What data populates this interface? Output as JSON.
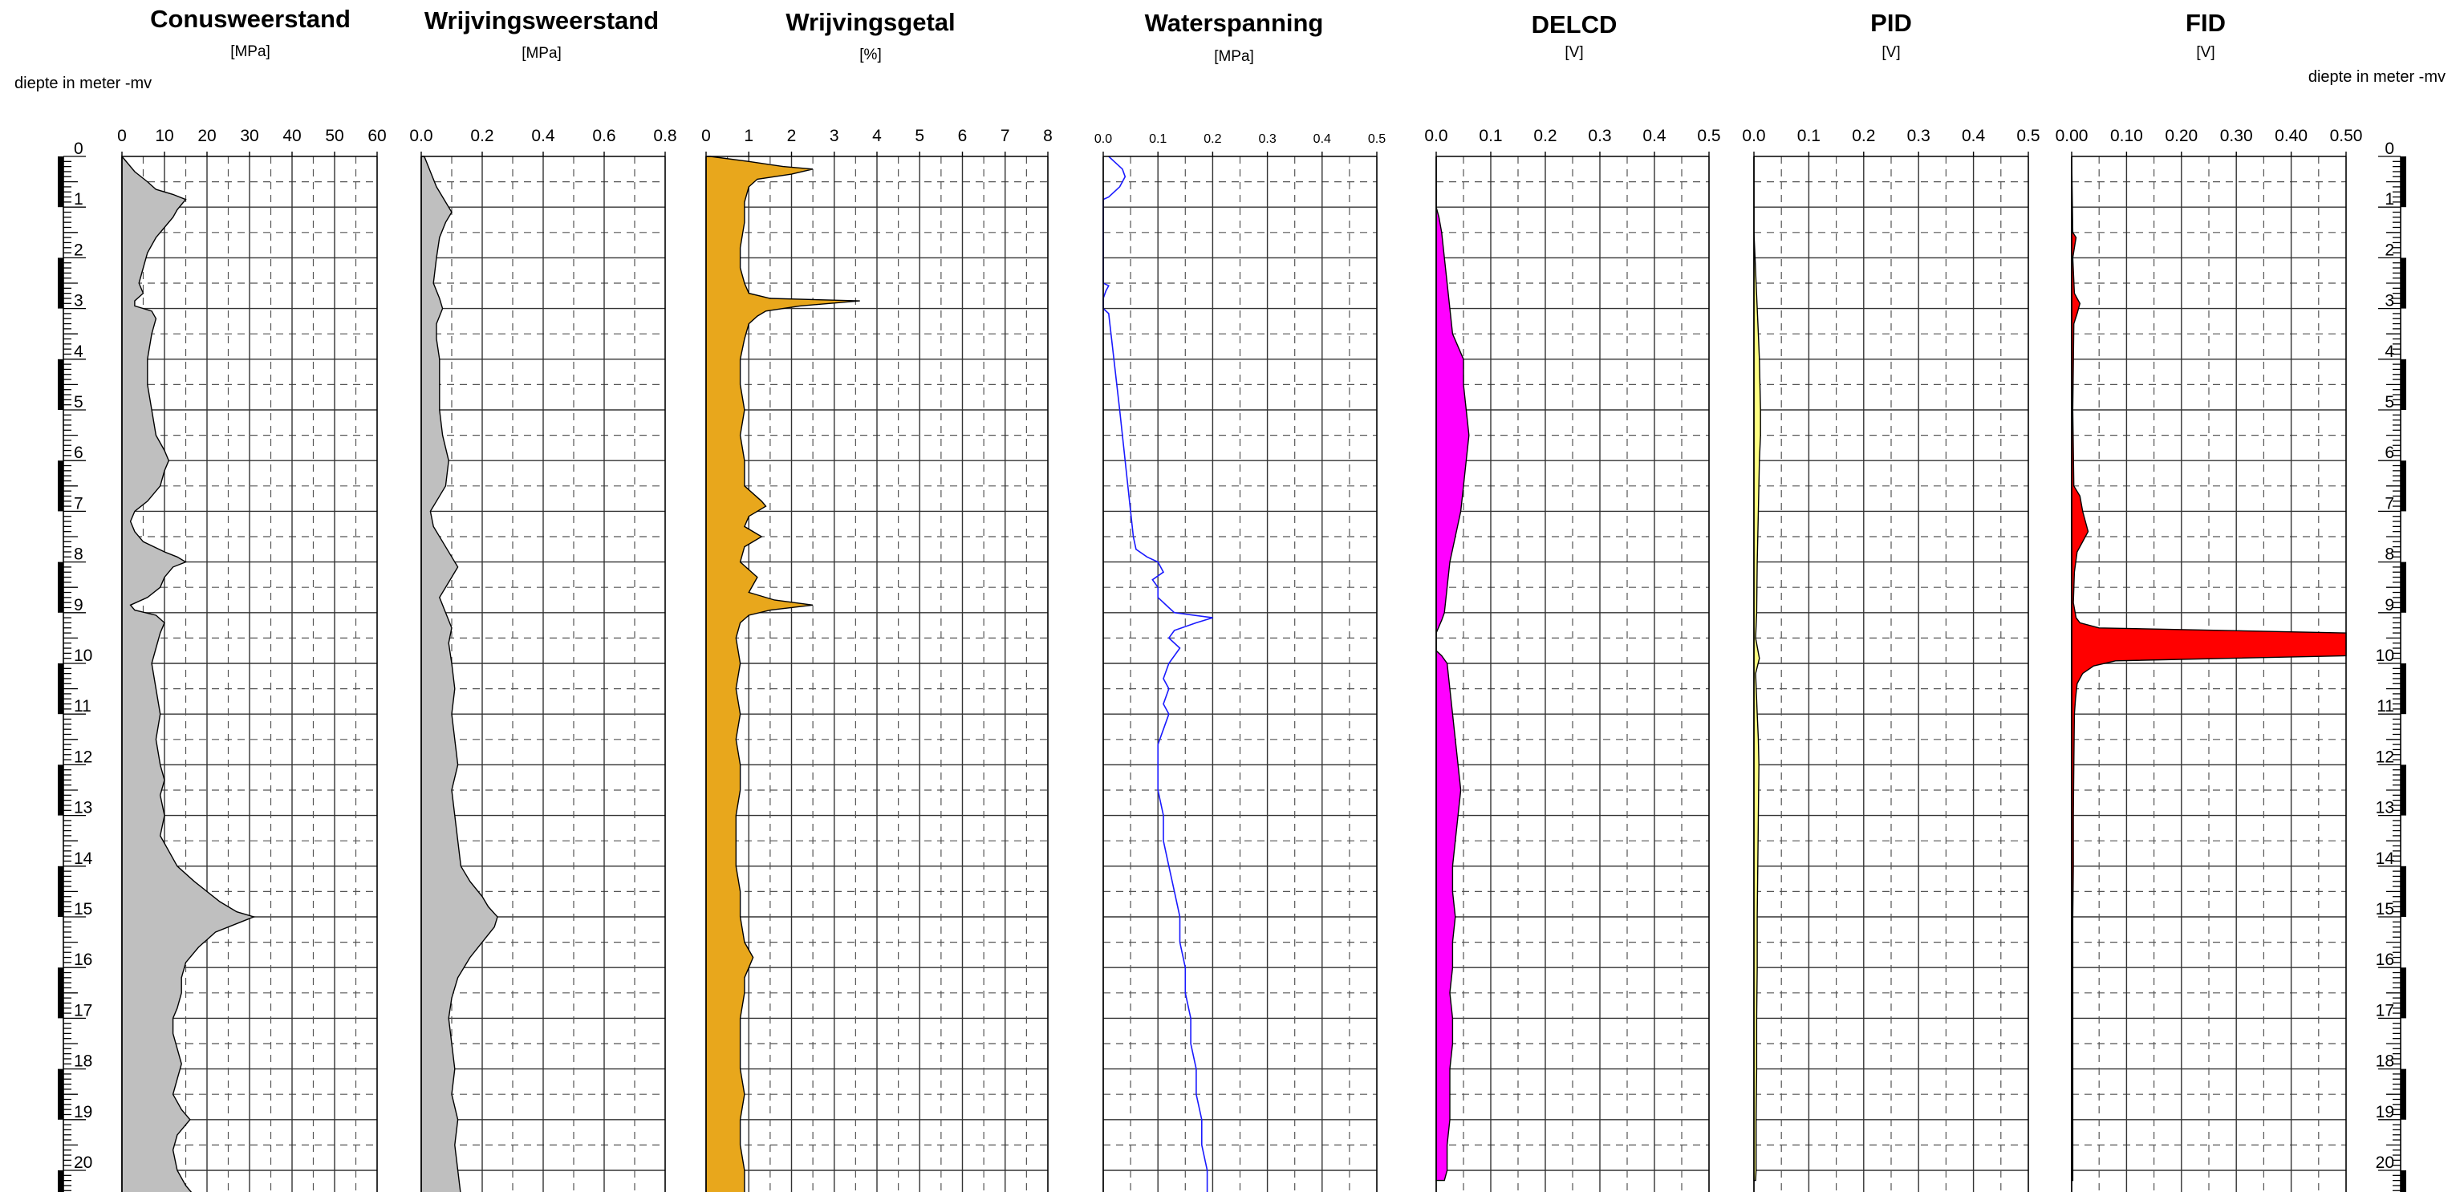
{
  "depth_axis": {
    "label_left": "diepte in meter -mv",
    "label_right": "diepte in meter -mv",
    "ticks": [
      "0",
      "1",
      "2",
      "3",
      "4",
      "5",
      "6",
      "7",
      "8",
      "9",
      "10",
      "11",
      "12",
      "13",
      "14",
      "15",
      "16",
      "17",
      "18",
      "19",
      "20"
    ],
    "range": [
      0,
      20.5
    ]
  },
  "chart_data": [
    {
      "type": "area",
      "title": "Conusweerstand",
      "unit": "[MPa]",
      "xlim": [
        0,
        60
      ],
      "xticks": [
        "0",
        "10",
        "20",
        "30",
        "40",
        "50",
        "60"
      ],
      "fill": "#bfbfbf",
      "series": [
        {
          "name": "",
          "depth": [
            0.0,
            0.3,
            0.5,
            0.65,
            0.75,
            0.85,
            0.95,
            1.05,
            1.2,
            1.4,
            1.6,
            1.9,
            2.2,
            2.5,
            2.7,
            2.85,
            2.95,
            3.05,
            3.2,
            3.5,
            4.0,
            4.5,
            5.0,
            5.5,
            5.8,
            6.0,
            6.2,
            6.5,
            6.8,
            7.0,
            7.2,
            7.4,
            7.6,
            7.8,
            7.9,
            8.0,
            8.1,
            8.3,
            8.5,
            8.7,
            8.85,
            8.95,
            9.05,
            9.2,
            9.4,
            9.7,
            10.0,
            10.5,
            11.0,
            11.5,
            12.0,
            12.3,
            12.6,
            13.0,
            13.4,
            13.7,
            14.0,
            14.3,
            14.5,
            14.7,
            14.9,
            15.0,
            15.1,
            15.3,
            15.6,
            15.9,
            16.2,
            16.5,
            16.8,
            17.0,
            17.3,
            17.6,
            17.9,
            18.2,
            18.5,
            18.8,
            19.0,
            19.3,
            19.6,
            20.0,
            20.3,
            20.5
          ],
          "values": [
            0,
            3,
            6,
            8,
            12,
            15,
            14,
            13,
            12,
            10,
            8,
            6,
            5,
            4,
            5,
            3,
            3,
            7,
            8,
            7,
            6,
            6,
            7,
            8,
            10,
            11,
            10,
            9,
            6,
            3,
            2,
            3,
            5,
            10,
            13,
            15,
            12,
            10,
            9,
            6,
            2,
            3,
            8,
            10,
            9,
            8,
            7,
            8,
            9,
            8,
            9,
            10,
            9,
            10,
            9,
            11,
            13,
            17,
            20,
            23,
            27,
            31,
            28,
            22,
            18,
            15,
            14,
            14,
            13,
            12,
            12,
            13,
            14,
            13,
            12,
            14,
            16,
            13,
            12,
            13,
            15,
            17
          ]
        }
      ]
    },
    {
      "type": "area",
      "title": "Wrijvingsweerstand",
      "unit": "[MPa]",
      "xlim": [
        0,
        0.8
      ],
      "xticks": [
        "0.0",
        "0.2",
        "0.4",
        "0.6",
        "0.8"
      ],
      "fill": "#bfbfbf",
      "series": [
        {
          "name": "",
          "depth": [
            0.0,
            0.3,
            0.6,
            0.9,
            1.1,
            1.3,
            1.6,
            2.0,
            2.5,
            2.8,
            3.0,
            3.3,
            3.6,
            4.0,
            4.5,
            5.0,
            5.5,
            6.0,
            6.5,
            6.8,
            7.0,
            7.3,
            7.6,
            7.9,
            8.1,
            8.4,
            8.7,
            9.0,
            9.3,
            9.6,
            10.0,
            10.5,
            11.0,
            11.5,
            12.0,
            12.5,
            13.0,
            13.5,
            14.0,
            14.3,
            14.6,
            14.8,
            15.0,
            15.2,
            15.5,
            15.8,
            16.2,
            16.6,
            17.0,
            17.5,
            18.0,
            18.5,
            19.0,
            19.5,
            20.0,
            20.5
          ],
          "values": [
            0.01,
            0.03,
            0.05,
            0.08,
            0.1,
            0.08,
            0.06,
            0.05,
            0.04,
            0.06,
            0.07,
            0.05,
            0.05,
            0.06,
            0.06,
            0.06,
            0.07,
            0.09,
            0.08,
            0.05,
            0.03,
            0.04,
            0.07,
            0.1,
            0.12,
            0.09,
            0.06,
            0.08,
            0.1,
            0.09,
            0.1,
            0.11,
            0.1,
            0.11,
            0.12,
            0.1,
            0.11,
            0.12,
            0.13,
            0.16,
            0.2,
            0.22,
            0.25,
            0.24,
            0.2,
            0.16,
            0.12,
            0.1,
            0.09,
            0.1,
            0.11,
            0.1,
            0.12,
            0.11,
            0.12,
            0.13
          ]
        }
      ]
    },
    {
      "type": "area",
      "title": "Wrijvingsgetal",
      "unit": "[%]",
      "xlim": [
        0,
        8
      ],
      "xticks": [
        "0",
        "1",
        "2",
        "3",
        "4",
        "5",
        "6",
        "7",
        "8"
      ],
      "fill": "#e8a71c",
      "series": [
        {
          "name": "",
          "depth": [
            0.0,
            0.1,
            0.2,
            0.25,
            0.35,
            0.45,
            0.6,
            0.9,
            1.3,
            1.8,
            2.2,
            2.5,
            2.7,
            2.8,
            2.85,
            2.95,
            3.05,
            3.15,
            3.3,
            3.6,
            4.0,
            4.5,
            5.0,
            5.5,
            6.0,
            6.5,
            6.8,
            6.9,
            7.1,
            7.3,
            7.5,
            7.7,
            8.0,
            8.3,
            8.6,
            8.75,
            8.85,
            8.95,
            9.05,
            9.2,
            9.5,
            10.0,
            10.5,
            11.0,
            11.5,
            12.0,
            12.5,
            13.0,
            13.5,
            14.0,
            14.5,
            15.0,
            15.5,
            15.8,
            16.0,
            16.2,
            16.5,
            17.0,
            17.5,
            18.0,
            18.5,
            19.0,
            19.5,
            20.0,
            20.5
          ],
          "values": [
            0.1,
            1.0,
            1.8,
            2.5,
            2.0,
            1.2,
            1.0,
            0.9,
            0.9,
            0.8,
            0.8,
            0.9,
            1.0,
            1.5,
            3.6,
            2.2,
            1.4,
            1.2,
            1.0,
            0.9,
            0.8,
            0.8,
            0.9,
            0.8,
            0.9,
            0.9,
            1.3,
            1.4,
            1.0,
            0.9,
            1.3,
            0.9,
            0.8,
            1.2,
            1.0,
            1.6,
            2.5,
            1.5,
            1.0,
            0.8,
            0.7,
            0.8,
            0.7,
            0.8,
            0.7,
            0.8,
            0.8,
            0.7,
            0.7,
            0.7,
            0.8,
            0.8,
            0.9,
            1.1,
            1.0,
            0.9,
            0.9,
            0.8,
            0.8,
            0.8,
            0.9,
            0.8,
            0.8,
            0.9,
            0.9
          ]
        }
      ]
    },
    {
      "type": "line",
      "title": "Waterspanning",
      "unit": "[MPa]",
      "xlim": [
        0,
        0.5
      ],
      "xticks": [
        "0.0",
        "0.1",
        "0.2",
        "0.3",
        "0.4",
        "0.5"
      ],
      "line_color": "#1a1aff",
      "series": [
        {
          "name": "",
          "depth": [
            0.0,
            0.1,
            0.25,
            0.4,
            0.6,
            0.8,
            0.85,
            0.95,
            2.5,
            2.55,
            2.65,
            2.8,
            3.0,
            3.1,
            5.0,
            7.5,
            7.75,
            7.9,
            8.0,
            8.2,
            8.35,
            8.5,
            8.7,
            8.9,
            9.0,
            9.1,
            9.2,
            9.35,
            9.5,
            9.7,
            10.0,
            10.3,
            10.5,
            10.8,
            11.0,
            11.3,
            11.6,
            12.0,
            12.5,
            13.0,
            13.5,
            14.0,
            14.5,
            15.0,
            15.5,
            16.0,
            16.5,
            17.0,
            17.5,
            18.0,
            18.5,
            19.0,
            19.5,
            20.0,
            20.5
          ],
          "values": [
            0.01,
            0.02,
            0.035,
            0.04,
            0.03,
            0.01,
            0.0,
            0.0,
            0.0,
            0.01,
            0.005,
            0.0,
            0.0,
            0.01,
            0.03,
            0.055,
            0.06,
            0.08,
            0.1,
            0.11,
            0.09,
            0.1,
            0.1,
            0.12,
            0.13,
            0.2,
            0.17,
            0.13,
            0.12,
            0.14,
            0.12,
            0.11,
            0.12,
            0.11,
            0.12,
            0.11,
            0.1,
            0.1,
            0.1,
            0.11,
            0.11,
            0.12,
            0.13,
            0.14,
            0.14,
            0.15,
            0.15,
            0.16,
            0.16,
            0.17,
            0.17,
            0.18,
            0.18,
            0.19,
            0.19
          ]
        }
      ]
    },
    {
      "type": "area",
      "title": "DELCD",
      "unit": "[V]",
      "xlim": [
        0,
        0.5
      ],
      "xticks": [
        "0.0",
        "0.1",
        "0.2",
        "0.3",
        "0.4",
        "0.5"
      ],
      "fill": "#ff00ff",
      "series": [
        {
          "name": "",
          "depth": [
            0.0,
            1.0,
            1.2,
            1.5,
            2.0,
            2.5,
            3.0,
            3.5,
            4.0,
            4.5,
            5.0,
            5.5,
            6.0,
            6.5,
            7.0,
            7.5,
            8.0,
            8.5,
            9.0,
            9.15,
            9.4,
            9.6,
            9.75,
            9.85,
            10.0,
            10.5,
            11.0,
            11.5,
            12.0,
            12.5,
            13.0,
            13.5,
            14.0,
            14.5,
            15.0,
            15.5,
            16.0,
            16.5,
            17.0,
            17.5,
            18.0,
            18.5,
            19.0,
            19.5,
            20.0,
            20.2
          ],
          "values": [
            0.0,
            0.0,
            0.005,
            0.01,
            0.015,
            0.02,
            0.025,
            0.03,
            0.05,
            0.05,
            0.055,
            0.06,
            0.055,
            0.05,
            0.045,
            0.035,
            0.025,
            0.02,
            0.015,
            0.01,
            0.0,
            0.0,
            0.0,
            0.01,
            0.02,
            0.025,
            0.03,
            0.035,
            0.04,
            0.045,
            0.04,
            0.035,
            0.03,
            0.03,
            0.035,
            0.03,
            0.03,
            0.025,
            0.03,
            0.03,
            0.025,
            0.025,
            0.025,
            0.02,
            0.02,
            0.015
          ]
        }
      ]
    },
    {
      "type": "area",
      "title": "PID",
      "unit": "[V]",
      "xlim": [
        0,
        0.5
      ],
      "xticks": [
        "0.0",
        "0.1",
        "0.2",
        "0.3",
        "0.4",
        "0.5"
      ],
      "fill": "#ffff80",
      "series": [
        {
          "name": "",
          "depth": [
            0.0,
            1.5,
            2.0,
            2.5,
            3.0,
            3.5,
            4.0,
            5.0,
            5.5,
            6.0,
            7.0,
            8.0,
            9.0,
            9.5,
            9.9,
            10.2,
            11.0,
            11.5,
            12.0,
            13.0,
            14.0,
            15.0,
            16.0,
            17.0,
            18.0,
            19.0,
            20.0,
            20.2
          ],
          "values": [
            0.0,
            0.0,
            0.002,
            0.004,
            0.006,
            0.008,
            0.01,
            0.012,
            0.012,
            0.01,
            0.008,
            0.006,
            0.005,
            0.003,
            0.01,
            0.003,
            0.006,
            0.008,
            0.009,
            0.008,
            0.007,
            0.006,
            0.006,
            0.005,
            0.005,
            0.004,
            0.004,
            0.003
          ]
        }
      ]
    },
    {
      "type": "area",
      "title": "FID",
      "unit": "[V]",
      "xlim": [
        0,
        0.5
      ],
      "xticks": [
        "0.00",
        "0.10",
        "0.20",
        "0.30",
        "0.40",
        "0.50"
      ],
      "fill": "#ff0000",
      "series": [
        {
          "name": "",
          "depth": [
            0.0,
            1.5,
            1.6,
            1.8,
            2.0,
            2.7,
            2.8,
            2.9,
            3.1,
            3.3,
            5.0,
            6.5,
            6.7,
            7.0,
            7.2,
            7.4,
            7.6,
            7.8,
            8.2,
            8.8,
            9.1,
            9.2,
            9.3,
            9.4,
            9.5,
            9.7,
            9.85,
            9.95,
            10.05,
            10.2,
            10.4,
            10.7,
            11.0,
            12.0,
            13.0,
            14.0,
            15.0,
            16.0,
            17.0,
            18.0,
            19.0,
            20.0,
            20.2
          ],
          "values": [
            0.0,
            0.002,
            0.008,
            0.005,
            0.002,
            0.005,
            0.01,
            0.015,
            0.01,
            0.004,
            0.002,
            0.004,
            0.015,
            0.02,
            0.025,
            0.03,
            0.02,
            0.01,
            0.005,
            0.003,
            0.008,
            0.015,
            0.05,
            0.5,
            0.5,
            0.5,
            0.5,
            0.08,
            0.04,
            0.02,
            0.01,
            0.007,
            0.005,
            0.004,
            0.003,
            0.003,
            0.002,
            0.002,
            0.002,
            0.002,
            0.002,
            0.002,
            0.002
          ]
        }
      ]
    }
  ]
}
